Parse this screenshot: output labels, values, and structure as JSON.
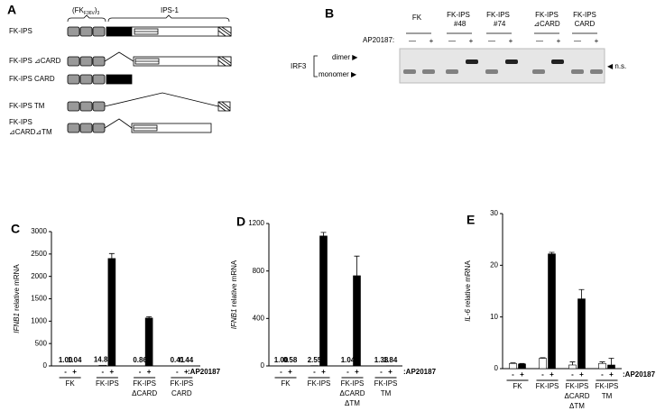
{
  "panel_a": {
    "letter": "A",
    "domain_fk": "(FK",
    "domain_fk_sub": "F36V",
    "domain_fk_close": ")",
    "domain_fk_sup": "3",
    "domain_ips": "IPS-1",
    "rows": [
      [
        "FK-IPS"
      ],
      [
        "FK-IPS ⊿CARD"
      ],
      [
        "FK-IPS CARD"
      ],
      [
        "FK-IPS TM"
      ],
      [
        "FK-IPS",
        "⊿CARD⊿TM"
      ]
    ]
  },
  "panel_b": {
    "letter": "B",
    "lanes": [
      [
        "FK"
      ],
      [
        "FK-IPS",
        "#48"
      ],
      [
        "FK-IPS",
        "#74"
      ],
      [
        "FK-IPS",
        "⊿CARD"
      ],
      [
        "FK-IPS",
        "CARD"
      ]
    ],
    "treatment": "AP20187:",
    "minus": "—",
    "plus": "+",
    "protein": "IRF3",
    "dimer": "dimer ▶",
    "monomer": "monomer ▶",
    "ns": "◀ n.s."
  },
  "chart_data": [
    {
      "type": "bar",
      "panel": "C",
      "ylabel_gene": "IFNB1",
      "ylabel": " relative mRNA",
      "treatment": ":AP20187",
      "categories": [
        [
          "FK"
        ],
        [
          "FK-IPS"
        ],
        [
          "FK-IPS",
          "ΔCARD"
        ],
        [
          "FK-IPS",
          "CARD"
        ]
      ],
      "series": [
        {
          "name": "-",
          "color": "#ffffff",
          "values": [
            1.0,
            14.81,
            0.86,
            0.41
          ],
          "value_labels": [
            "1.00",
            "14.81",
            "0.86",
            "0.41"
          ],
          "errors": [
            null,
            null,
            null,
            null
          ]
        },
        {
          "name": "+",
          "color": "#000000",
          "values": [
            1.04,
            2400,
            1070,
            0.44
          ],
          "value_labels": [
            "1.04",
            null,
            null,
            "0.44"
          ],
          "errors": [
            null,
            110,
            30,
            null
          ]
        }
      ],
      "ylim": [
        0,
        3000
      ],
      "yticks": [
        0,
        500,
        1000,
        1500,
        2000,
        2500,
        3000
      ]
    },
    {
      "type": "bar",
      "panel": "D",
      "ylabel_gene": "IFNB1",
      "ylabel": " relative mRNA",
      "treatment": ":AP20187",
      "categories": [
        [
          "FK"
        ],
        [
          "FK-IPS"
        ],
        [
          "FK-IPS",
          "ΔCARD",
          "ΔTM"
        ],
        [
          "FK-IPS",
          "TM"
        ]
      ],
      "series": [
        {
          "name": "-",
          "color": "#ffffff",
          "values": [
            1.0,
            2.55,
            1.04,
            1.38
          ],
          "value_labels": [
            "1.00",
            "2.55",
            "1.04",
            "1.38"
          ],
          "errors": [
            null,
            null,
            null,
            null
          ]
        },
        {
          "name": "+",
          "color": "#000000",
          "values": [
            0.58,
            1095,
            760,
            1.84
          ],
          "value_labels": [
            "0.58",
            null,
            null,
            "1.84"
          ],
          "errors": [
            null,
            30,
            165,
            null
          ]
        }
      ],
      "ylim": [
        0,
        1200
      ],
      "yticks": [
        0,
        400,
        800,
        1200
      ]
    },
    {
      "type": "bar",
      "panel": "E",
      "ylabel_gene": "IL-6",
      "ylabel": " relative mRNA",
      "treatment": ":AP20187",
      "categories": [
        [
          "FK"
        ],
        [
          "FK-IPS"
        ],
        [
          "FK-IPS",
          "ΔCARD",
          "ΔTM"
        ],
        [
          "FK-IPS",
          "TM"
        ]
      ],
      "series": [
        {
          "name": "-",
          "color": "#ffffff",
          "values": [
            1.0,
            2.0,
            0.7,
            1.0
          ],
          "errors": [
            0.1,
            0.1,
            0.6,
            0.3
          ]
        },
        {
          "name": "+",
          "color": "#000000",
          "values": [
            0.9,
            22.2,
            13.5,
            0.7
          ],
          "errors": [
            0.1,
            0.3,
            1.8,
            1.3
          ]
        }
      ],
      "ylim": [
        0,
        30
      ],
      "yticks": [
        0,
        10,
        20,
        30
      ]
    }
  ]
}
